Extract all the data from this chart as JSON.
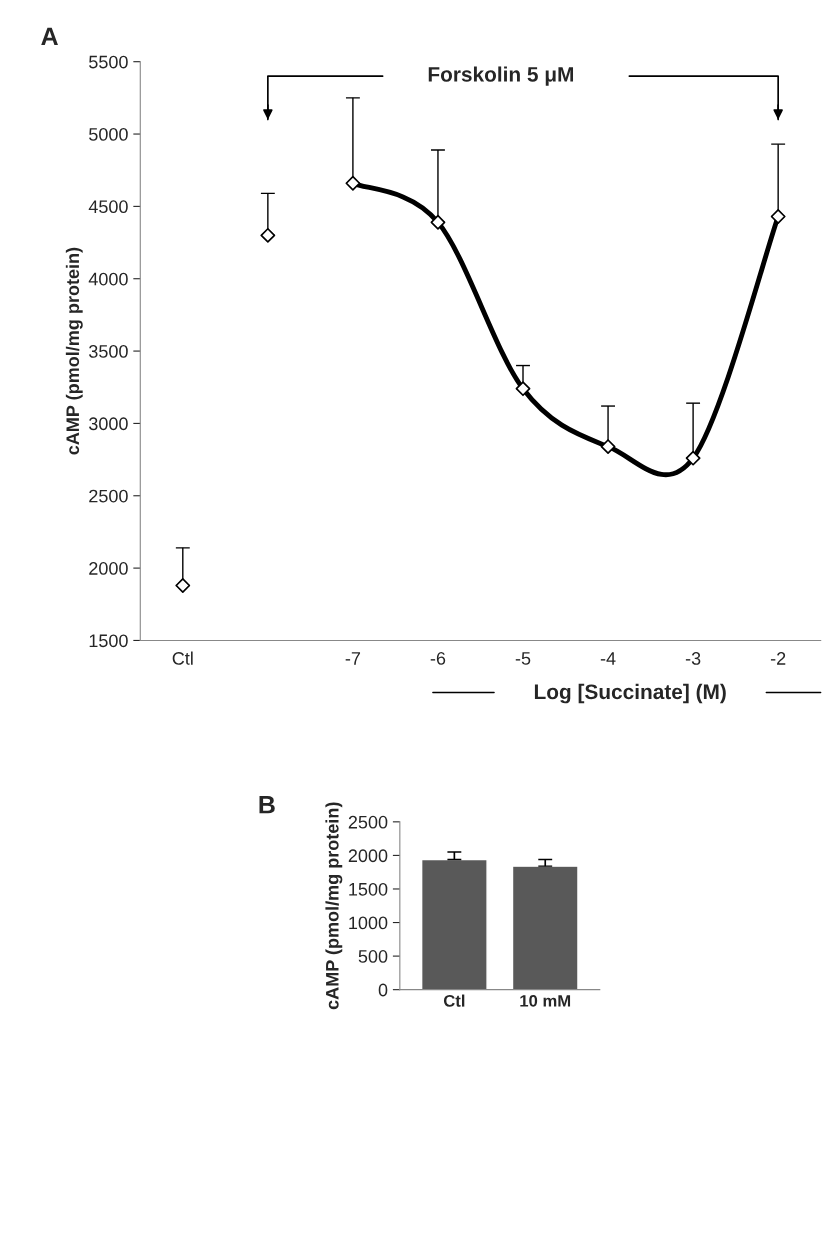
{
  "chart_data": [
    {
      "type": "scatter",
      "title": "A",
      "ylabel": "cAMP (pmol/mg protein)",
      "xlabel": "Log [Succinate] (M)",
      "categories": [
        "Ctl",
        null,
        "-7",
        "-6",
        "-5",
        "-4",
        "-3",
        "-2"
      ],
      "series": [
        {
          "type": "scatter",
          "color": "#000000",
          "marker": "diamond",
          "values": [
            1880,
            4300,
            4660,
            4390,
            3240,
            2840,
            2760,
            4430
          ],
          "errors": [
            [
              1880,
              2140
            ],
            [
              4300,
              4590
            ],
            [
              4660,
              5250
            ],
            [
              4390,
              4890
            ],
            [
              3240,
              3400
            ],
            [
              2840,
              3120
            ],
            [
              2760,
              3140
            ],
            [
              4430,
              4930
            ]
          ]
        },
        {
          "type": "line",
          "color": "#000000",
          "marker": "none",
          "x": [
            "-7",
            "-6",
            "-5",
            "-4",
            "-3",
            "-2"
          ],
          "values": [
            4660,
            4390,
            3240,
            2840,
            2760,
            4430
          ]
        }
      ],
      "ylim": [
        1500,
        5500
      ],
      "yticks": [
        1500,
        2000,
        2500,
        3000,
        3500,
        4000,
        4500,
        5000,
        5500
      ],
      "annotations": [
        "Forskolin 5 μM"
      ],
      "grid": false,
      "legend": false
    },
    {
      "type": "bar",
      "title": "B",
      "ylabel": "cAMP (pmol/mg protein)",
      "categories": [
        "Ctl",
        "10 mM"
      ],
      "values": [
        1940,
        1840
      ],
      "errors": [
        [
          1940,
          2050
        ],
        [
          1840,
          1940
        ]
      ],
      "color": "#595959",
      "ylim": [
        0,
        2500
      ],
      "yticks": [
        0,
        500,
        1000,
        1500,
        2000,
        2500
      ],
      "grid": false,
      "legend": false
    }
  ]
}
